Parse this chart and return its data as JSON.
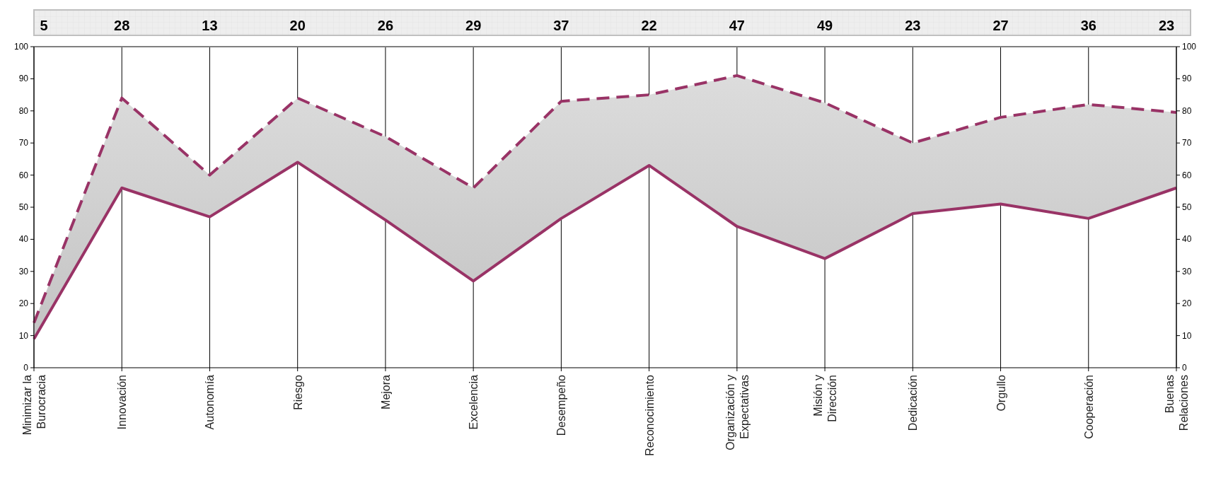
{
  "chart_data": {
    "type": "line",
    "categories": [
      "Minimizar la Burocracia",
      "Innovación",
      "Autonomía",
      "Riesgo",
      "Mejora",
      "Excelencia",
      "Desempeño",
      "Reconocimiento",
      "Organización y Expectativas",
      "Misión y Dirección",
      "Dedicación",
      "Orgullo",
      "Cooperación",
      "Buenas Relaciones"
    ],
    "series": [
      {
        "color": "#993366",
        "line_style": "dashed",
        "values": [
          14,
          84,
          60,
          84,
          72,
          56,
          83,
          85,
          91,
          82.5,
          70,
          78,
          82,
          79.5
        ]
      },
      {
        "color": "#993366",
        "line_style": "solid",
        "values": [
          9,
          56,
          47,
          64,
          46,
          27,
          46.5,
          63,
          44,
          34,
          48,
          51,
          46.5,
          56
        ],
        "lower": [
          9,
          56,
          47,
          64,
          46,
          27,
          46.5,
          63,
          44,
          34,
          48,
          51,
          46.5,
          56
        ],
        "upper": [
          14,
          84,
          60,
          84,
          72,
          56,
          83,
          85,
          91,
          82.5,
          70,
          78,
          82,
          79.5
        ]
      }
    ],
    "ylim": [
      0,
      100
    ],
    "yticks": [
      0,
      10,
      20,
      30,
      40,
      50,
      60,
      70,
      80,
      90,
      100
    ],
    "y2lim": [
      0,
      100
    ],
    "y2ticks": [
      0,
      10,
      20,
      30,
      40,
      50,
      60,
      70,
      80,
      90,
      100
    ],
    "grid": "x",
    "marker": "none",
    "annotations": [
      "5",
      "28",
      "13",
      "20",
      "26",
      "29",
      "37",
      "22",
      "47",
      "49",
      "23",
      "27",
      "36",
      "23"
    ]
  }
}
